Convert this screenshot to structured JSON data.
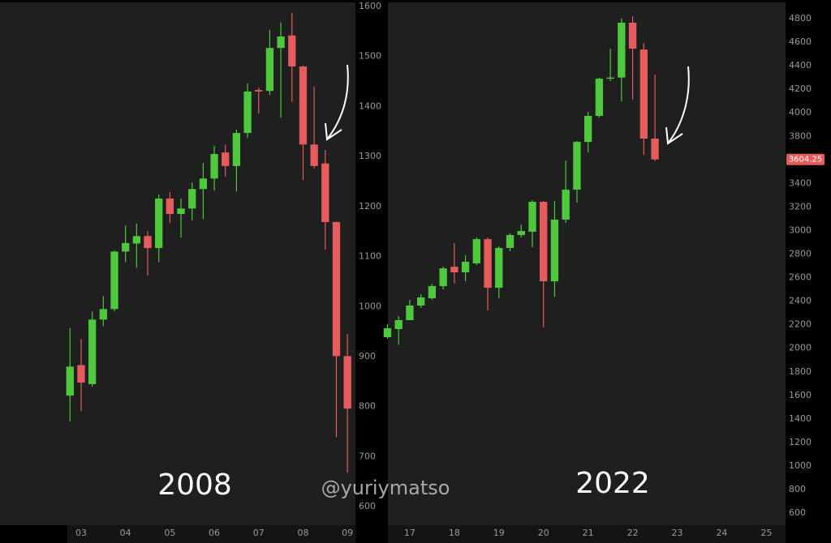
{
  "chart_data": [
    {
      "type": "candlestick",
      "title": "2008",
      "up_color": "#4ec83c",
      "down_color": "#e65c5c",
      "x": [
        2002.75,
        2003.0,
        2003.25,
        2003.5,
        2003.75,
        2004.0,
        2004.25,
        2004.5,
        2004.75,
        2005.0,
        2005.25,
        2005.5,
        2005.75,
        2006.0,
        2006.25,
        2006.5,
        2006.75,
        2007.0,
        2007.25,
        2007.5,
        2007.75,
        2008.0,
        2008.25,
        2008.5,
        2008.75,
        2009.0
      ],
      "open": [
        822,
        883,
        845,
        974,
        995,
        1110,
        1126,
        1141,
        1117,
        1216,
        1185,
        1196,
        1235,
        1256,
        1308,
        1281,
        1347,
        1433,
        1431,
        1517,
        1542,
        1480,
        1324,
        1286,
        1169,
        901
      ],
      "high": [
        957,
        935,
        990,
        1021,
        1112,
        1162,
        1166,
        1151,
        1224,
        1229,
        1216,
        1248,
        1287,
        1321,
        1324,
        1354,
        1446,
        1438,
        1553,
        1568,
        1587,
        1482,
        1440,
        1313,
        1170,
        945
      ],
      "low": [
        770,
        791,
        840,
        961,
        990,
        1089,
        1078,
        1062,
        1089,
        1167,
        1138,
        1172,
        1175,
        1232,
        1260,
        1230,
        1337,
        1386,
        1423,
        1378,
        1409,
        1253,
        1276,
        1114,
        739,
        668
      ],
      "close": [
        880,
        848,
        974,
        995,
        1110,
        1127,
        1141,
        1117,
        1216,
        1185,
        1196,
        1235,
        1256,
        1305,
        1281,
        1347,
        1430,
        1430,
        1517,
        1540,
        1480,
        1324,
        1281,
        1169,
        901,
        796
      ],
      "xlim": [
        2002.69,
        2009.18
      ],
      "xticks": [
        {
          "value": 2003,
          "label": "03"
        },
        {
          "value": 2004,
          "label": "04"
        },
        {
          "value": 2005,
          "label": "05"
        },
        {
          "value": 2006,
          "label": "06"
        },
        {
          "value": 2007,
          "label": "07"
        },
        {
          "value": 2008,
          "label": "08"
        },
        {
          "value": 2009,
          "label": "09"
        }
      ],
      "ylim": [
        563,
        1608
      ],
      "yticks": [
        600,
        700,
        800,
        900,
        1000,
        1100,
        1200,
        1300,
        1400,
        1500,
        1600
      ]
    },
    {
      "type": "candlestick",
      "title": "2022",
      "up_color": "#4ec83c",
      "down_color": "#e65c5c",
      "x": [
        2016.5,
        2016.75,
        2017.0,
        2017.25,
        2017.5,
        2017.75,
        2018.0,
        2018.25,
        2018.5,
        2018.75,
        2019.0,
        2019.25,
        2019.5,
        2019.75,
        2020.0,
        2020.25,
        2020.5,
        2020.75,
        2021.0,
        2021.25,
        2021.5,
        2021.75,
        2022.0,
        2022.25,
        2022.5
      ],
      "open": [
        2094,
        2163,
        2239,
        2363,
        2425,
        2528,
        2693,
        2645,
        2721,
        2927,
        2514,
        2852,
        2962,
        2990,
        3244,
        2569,
        3093,
        3347,
        3753,
        3974,
        4290,
        4300,
        4766,
        4538,
        3781
      ],
      "high": [
        2204,
        2273,
        2411,
        2459,
        2549,
        2693,
        2893,
        2790,
        2941,
        2941,
        2865,
        2976,
        3051,
        3258,
        3250,
        3251,
        3595,
        3760,
        4008,
        4297,
        4545,
        4800,
        4820,
        4593,
        4325
      ],
      "low": [
        2080,
        2032,
        2239,
        2342,
        2411,
        2500,
        2549,
        2569,
        2707,
        2321,
        2425,
        2824,
        2941,
        2858,
        2177,
        2438,
        3065,
        3237,
        3664,
        3960,
        4270,
        4098,
        4112,
        3643,
        3590
      ],
      "close": [
        2170,
        2239,
        2363,
        2432,
        2528,
        2679,
        2645,
        2735,
        2927,
        2514,
        2852,
        2962,
        2996,
        3244,
        2569,
        3093,
        3347,
        3753,
        3974,
        4290,
        4300,
        4766,
        4545,
        3781,
        3604.25
      ],
      "xlim": [
        2016.51,
        2025.43
      ],
      "xticks": [
        {
          "value": 2017,
          "label": "17"
        },
        {
          "value": 2018,
          "label": "18"
        },
        {
          "value": 2019,
          "label": "19"
        },
        {
          "value": 2020,
          "label": "20"
        },
        {
          "value": 2021,
          "label": "21"
        },
        {
          "value": 2022,
          "label": "22"
        },
        {
          "value": 2023,
          "label": "23"
        },
        {
          "value": 2024,
          "label": "24"
        },
        {
          "value": 2025,
          "label": "25"
        }
      ],
      "ylim": [
        497,
        4938
      ],
      "yticks": [
        600,
        800,
        1000,
        1200,
        1400,
        1600,
        1800,
        2000,
        2200,
        2400,
        2600,
        2800,
        3000,
        3200,
        3400,
        3600,
        3800,
        4000,
        4200,
        4400,
        4600,
        4800
      ]
    }
  ],
  "watermark": "@yuriymatso"
}
